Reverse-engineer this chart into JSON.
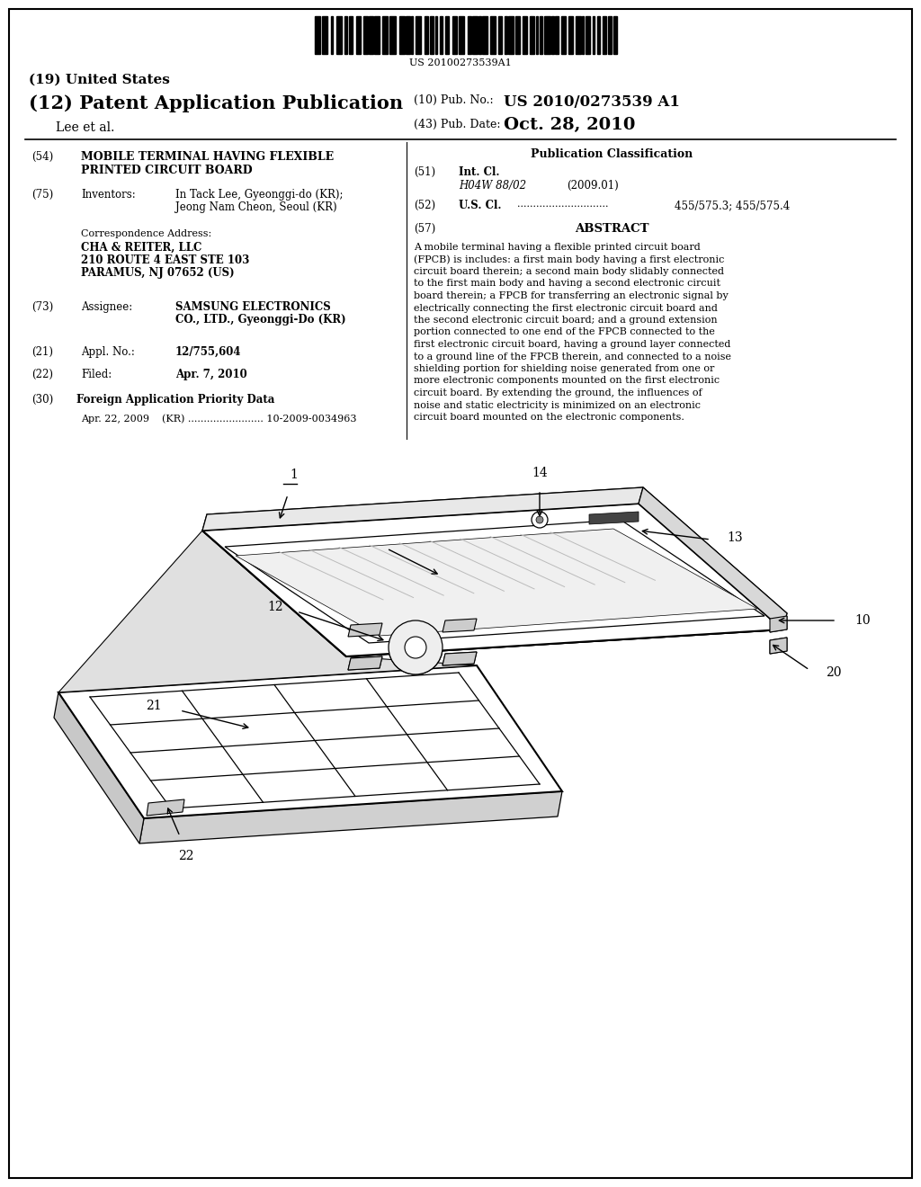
{
  "bg_color": "#ffffff",
  "barcode_text": "US 20100273539A1",
  "title_19": "(19) United States",
  "title_12": "(12) Patent Application Publication",
  "pub_no_label": "(10) Pub. No.:",
  "pub_no_value": "US 2010/0273539 A1",
  "pub_date_label": "(43) Pub. Date:",
  "pub_date_value": "Oct. 28, 2010",
  "inventor_label": "Lee et al.",
  "field_54_label": "(54)",
  "field_54_line1": "MOBILE TERMINAL HAVING FLEXIBLE",
  "field_54_line2": "PRINTED CIRCUIT BOARD",
  "field_75_label": "(75)",
  "field_75_name": "Inventors:",
  "field_75_line1": "In Tack Lee, Gyeonggi-do (KR);",
  "field_75_line2": "Jeong Nam Cheon, Seoul (KR)",
  "correspondence_label": "Correspondence Address:",
  "corr_line1": "CHA & REITER, LLC",
  "corr_line2": "210 ROUTE 4 EAST STE 103",
  "corr_line3": "PARAMUS, NJ 07652 (US)",
  "field_73_label": "(73)",
  "field_73_name": "Assignee:",
  "field_73_line1": "SAMSUNG ELECTRONICS",
  "field_73_line2": "CO., LTD., Gyeonggi-Do (KR)",
  "field_21_label": "(21)",
  "field_21_name": "Appl. No.:",
  "field_21_text": "12/755,604",
  "field_22_label": "(22)",
  "field_22_name": "Filed:",
  "field_22_text": "Apr. 7, 2010",
  "field_30_label": "(30)",
  "field_30_text": "Foreign Application Priority Data",
  "priority_line": "Apr. 22, 2009    (KR) ........................ 10-2009-0034963",
  "pub_class_title": "Publication Classification",
  "field_51_label": "(51)",
  "field_51_name": "Int. Cl.",
  "field_51_class": "H04W 88/02",
  "field_51_year": "(2009.01)",
  "field_52_label": "(52)",
  "field_52_name": "U.S. Cl.",
  "field_52_dots": ".............................",
  "field_52_text": "455/575.3; 455/575.4",
  "field_57_label": "(57)",
  "field_57_name": "ABSTRACT",
  "abstract_lines": [
    "A mobile terminal having a flexible printed circuit board",
    "(FPCB) is includes: a first main body having a first electronic",
    "circuit board therein; a second main body slidably connected",
    "to the first main body and having a second electronic circuit",
    "board therein; a FPCB for transferring an electronic signal by",
    "electrically connecting the first electronic circuit board and",
    "the second electronic circuit board; and a ground extension",
    "portion connected to one end of the FPCB connected to the",
    "first electronic circuit board, having a ground layer connected",
    "to a ground line of the FPCB therein, and connected to a noise",
    "shielding portion for shielding noise generated from one or",
    "more electronic components mounted on the first electronic",
    "circuit board. By extending the ground, the influences of",
    "noise and static electricity is minimized on an electronic",
    "circuit board mounted on the electronic components."
  ]
}
